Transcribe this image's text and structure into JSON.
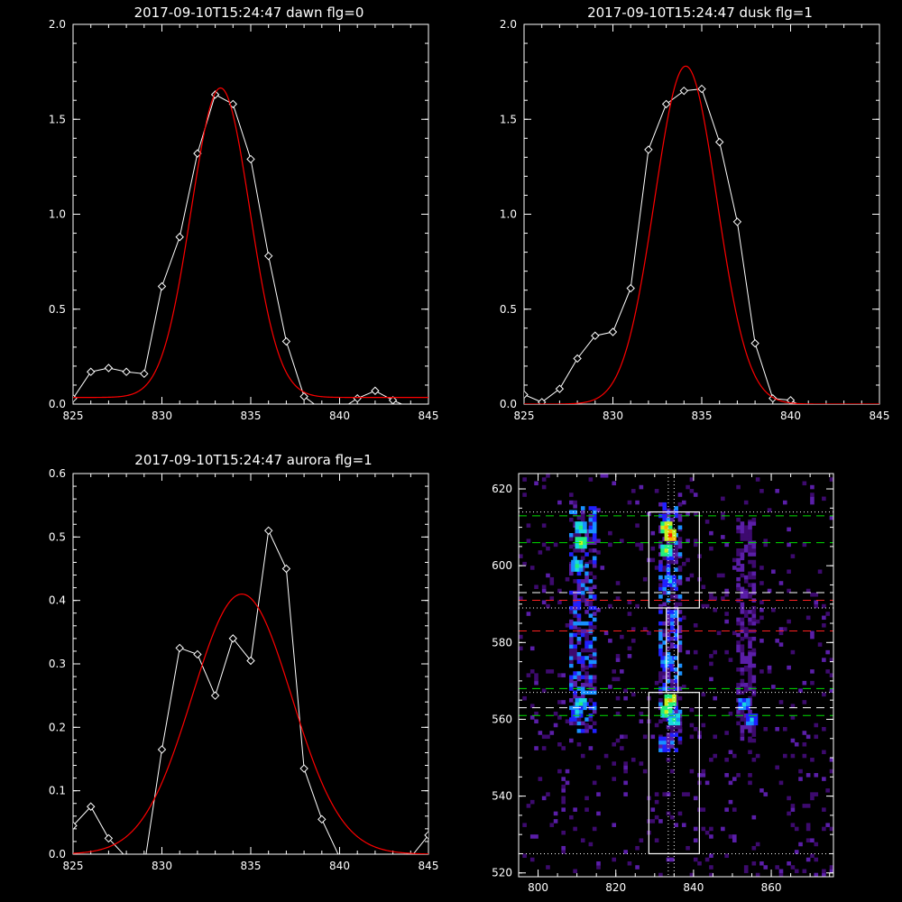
{
  "chart_data": [
    {
      "id": "dawn",
      "type": "line",
      "title": "2017-09-10T15:24:47 dawn flg=0",
      "xlim": [
        825,
        845
      ],
      "ylim": [
        0,
        2.0
      ],
      "xticks": [
        "825",
        "830",
        "835",
        "840",
        "845"
      ],
      "yticks": [
        "0.0",
        "0.5",
        "1.0",
        "1.5",
        "2.0"
      ],
      "series": [
        {
          "role": "data",
          "color": "#ffffff",
          "markers": "diamond",
          "x": [
            825,
            826,
            827,
            828,
            829,
            830,
            831,
            832,
            833,
            834,
            835,
            836,
            837,
            838,
            839,
            840,
            841,
            842,
            843,
            844,
            845
          ],
          "y": [
            0.03,
            0.17,
            0.19,
            0.17,
            0.16,
            0.62,
            0.88,
            1.32,
            1.63,
            1.58,
            1.29,
            0.78,
            0.33,
            0.04,
            -0.03,
            -0.03,
            0.03,
            0.07,
            0.02,
            -0.02,
            -0.02
          ]
        },
        {
          "role": "gaussian-fit",
          "color": "#ff0000",
          "gaussian": {
            "amplitude": 1.63,
            "center": 833.3,
            "sigma": 1.65,
            "offset": 0.035
          }
        }
      ]
    },
    {
      "id": "dusk",
      "type": "line",
      "title": "2017-09-10T15:24:47 dusk flg=1",
      "xlim": [
        825,
        845
      ],
      "ylim": [
        0,
        2.0
      ],
      "xticks": [
        "825",
        "830",
        "835",
        "840",
        "845"
      ],
      "yticks": [
        "0.0",
        "0.5",
        "1.0",
        "1.5",
        "2.0"
      ],
      "series": [
        {
          "role": "data",
          "color": "#ffffff",
          "markers": "diamond",
          "x": [
            825,
            826,
            827,
            828,
            829,
            830,
            831,
            832,
            833,
            834,
            835,
            836,
            837,
            838,
            839,
            840,
            841,
            842,
            843,
            844,
            845
          ],
          "y": [
            0.05,
            0.01,
            0.08,
            0.24,
            0.36,
            0.38,
            0.61,
            1.34,
            1.58,
            1.65,
            1.66,
            1.38,
            0.96,
            0.32,
            0.03,
            0.02,
            -0.03,
            -0.03,
            -0.03,
            -0.03,
            -0.03
          ]
        },
        {
          "role": "gaussian-fit",
          "color": "#ff0000",
          "gaussian": {
            "amplitude": 1.78,
            "center": 834.1,
            "sigma": 1.75,
            "offset": 0.0
          }
        }
      ]
    },
    {
      "id": "aurora",
      "type": "line",
      "title": "2017-09-10T15:24:47 aurora flg=1",
      "xlim": [
        825,
        845
      ],
      "ylim": [
        0,
        0.6
      ],
      "xticks": [
        "825",
        "830",
        "835",
        "840",
        "845"
      ],
      "yticks": [
        "0.0",
        "0.1",
        "0.2",
        "0.3",
        "0.4",
        "0.5",
        "0.6"
      ],
      "series": [
        {
          "role": "data",
          "color": "#ffffff",
          "markers": "diamond",
          "x": [
            825,
            826,
            827,
            828,
            829,
            830,
            831,
            832,
            833,
            834,
            835,
            836,
            837,
            838,
            839,
            840,
            841,
            842,
            843,
            844,
            845
          ],
          "y": [
            0.045,
            0.075,
            0.025,
            -0.005,
            -0.02,
            0.165,
            0.325,
            0.315,
            0.25,
            0.34,
            0.305,
            0.51,
            0.45,
            0.135,
            0.055,
            -0.005,
            -0.005,
            -0.01,
            -0.02,
            -0.005,
            0.03
          ]
        },
        {
          "role": "gaussian-fit",
          "color": "#ff0000",
          "gaussian": {
            "amplitude": 0.41,
            "center": 834.5,
            "sigma": 2.8,
            "offset": 0.0
          }
        }
      ]
    },
    {
      "id": "image",
      "type": "heatmap",
      "xlim": [
        795,
        876
      ],
      "ylim": [
        519,
        624
      ],
      "xticks": [
        800,
        820,
        840,
        860
      ],
      "yticks": [
        520,
        540,
        560,
        580,
        600,
        620
      ],
      "colormap": [
        "#000000",
        "#3d0a6e",
        "#5a1ea8",
        "#2020ff",
        "#1890ff",
        "#18d8e0",
        "#20f080",
        "#c8f020",
        "#ffb000",
        "#ff2000"
      ],
      "columns": [
        {
          "x0": 808.5,
          "x1": 814.5,
          "y0": 557,
          "y1": 615,
          "level": 4
        },
        {
          "x0": 831.5,
          "x1": 836.5,
          "y0": 552,
          "y1": 616,
          "level": 4
        },
        {
          "x0": 851.5,
          "x1": 855.5,
          "y0": 555,
          "y1": 612,
          "level": 2
        }
      ],
      "hotspots": [
        {
          "x": 811,
          "y": 610,
          "level": 6
        },
        {
          "x": 811,
          "y": 606,
          "level": 7
        },
        {
          "x": 810,
          "y": 600,
          "level": 6
        },
        {
          "x": 811,
          "y": 564,
          "level": 6
        },
        {
          "x": 810,
          "y": 562,
          "level": 5
        },
        {
          "x": 833,
          "y": 610,
          "level": 8
        },
        {
          "x": 834,
          "y": 608,
          "level": 9
        },
        {
          "x": 833,
          "y": 604,
          "level": 7
        },
        {
          "x": 834,
          "y": 596,
          "level": 5
        },
        {
          "x": 834,
          "y": 565,
          "level": 8
        },
        {
          "x": 833,
          "y": 562,
          "level": 7
        },
        {
          "x": 835,
          "y": 560,
          "level": 6
        },
        {
          "x": 833,
          "y": 575,
          "level": 5
        },
        {
          "x": 853,
          "y": 564,
          "level": 5
        },
        {
          "x": 855,
          "y": 560,
          "level": 5
        }
      ],
      "boxes": [
        {
          "x0": 828.5,
          "x1": 841.5,
          "y0": 589,
          "y1": 614,
          "color": "#ffffff"
        },
        {
          "x0": 833,
          "x1": 836,
          "y0": 567,
          "y1": 589,
          "color": "#ffffff"
        },
        {
          "x0": 828.5,
          "x1": 841.5,
          "y0": 525,
          "y1": 567,
          "color": "#ffffff"
        }
      ],
      "hlines": [
        {
          "y": 614,
          "color": "#ffffff",
          "style": "dotted"
        },
        {
          "y": 613,
          "color": "#00e000",
          "style": "dashed"
        },
        {
          "y": 606,
          "color": "#00e000",
          "style": "dashed"
        },
        {
          "y": 593,
          "color": "#ffffff",
          "style": "dashed"
        },
        {
          "y": 591,
          "color": "#ff2020",
          "style": "dashed"
        },
        {
          "y": 589,
          "color": "#ffffff",
          "style": "dotted"
        },
        {
          "y": 583,
          "color": "#ff2020",
          "style": "dashed"
        },
        {
          "y": 568,
          "color": "#00e000",
          "style": "dashed"
        },
        {
          "y": 567,
          "color": "#ffffff",
          "style": "dotted"
        },
        {
          "y": 563,
          "color": "#ffffff",
          "style": "dashed"
        },
        {
          "y": 561,
          "color": "#00e000",
          "style": "dashed"
        },
        {
          "y": 525,
          "color": "#ffffff",
          "style": "dotted"
        }
      ],
      "vlines": [
        {
          "x": 833.5,
          "color": "#ffffff",
          "style": "dotted"
        },
        {
          "x": 835,
          "color": "#ffffff",
          "style": "dotted"
        }
      ]
    }
  ]
}
